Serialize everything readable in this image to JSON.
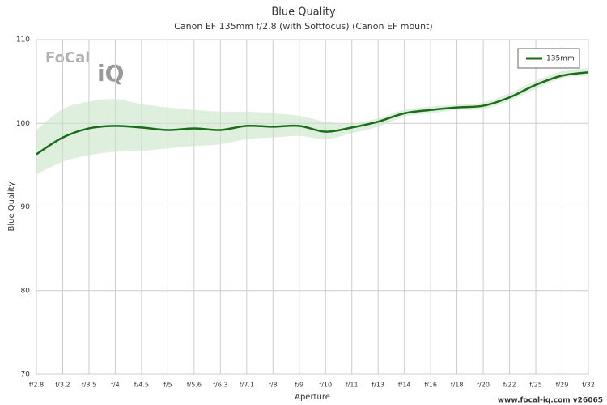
{
  "chart_data": {
    "type": "line",
    "title": "Blue Quality",
    "subtitle": "Canon EF 135mm f/2.8 (with Softfocus) (Canon EF mount)",
    "x_label": "Aperture",
    "y_label": "Blue Quality",
    "logo": [
      "FoCal",
      "iQ"
    ],
    "footer": "www.focal-iq.com  v26065",
    "categories": [
      "f/2.8",
      "f/3.2",
      "f/3.5",
      "f/4",
      "f/4.5",
      "f/5",
      "f/5.6",
      "f/6.3",
      "f/7.1",
      "f/8",
      "f/9",
      "f/10",
      "f/11",
      "f/13",
      "f/14",
      "f/16",
      "f/18",
      "f/20",
      "f/22",
      "f/25",
      "f/29",
      "f/32"
    ],
    "series": [
      {
        "name": "135mm",
        "color": "#1a6b1a",
        "values": [
          96.3,
          98.3,
          99.4,
          99.7,
          99.5,
          99.2,
          99.4,
          99.2,
          99.7,
          99.6,
          99.7,
          99.0,
          99.5,
          100.2,
          101.2,
          101.6,
          101.9,
          102.1,
          103.1,
          104.6,
          105.7,
          106.1
        ],
        "band_upper": [
          99.2,
          101.7,
          102.6,
          102.9,
          102.3,
          101.9,
          101.6,
          101.4,
          101.4,
          101.2,
          100.9,
          100.2,
          100.0,
          100.6,
          101.6,
          102.0,
          102.2,
          102.5,
          103.6,
          105.1,
          106.2,
          106.6
        ],
        "band_lower": [
          93.9,
          95.4,
          96.2,
          96.6,
          96.7,
          97.0,
          97.3,
          97.5,
          98.1,
          98.3,
          98.5,
          98.1,
          98.8,
          99.6,
          100.8,
          101.2,
          101.6,
          101.7,
          102.7,
          104.1,
          105.4,
          105.7
        ],
        "band_color": "#c8e4c8"
      }
    ],
    "ylim": [
      70,
      110
    ],
    "yticks": [
      70,
      80,
      90,
      100,
      110
    ],
    "grid": true,
    "legend": "upper right"
  }
}
